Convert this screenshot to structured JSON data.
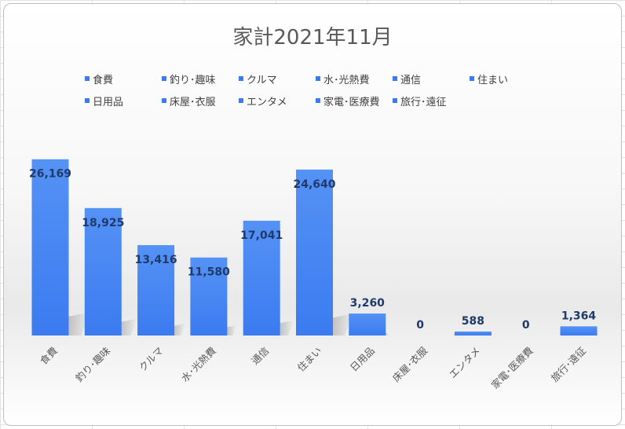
{
  "chart_data": {
    "type": "bar",
    "title": "家計2021年11月",
    "categories": [
      "食費",
      "釣り･趣味",
      "クルマ",
      "水･光熱費",
      "通信",
      "住まい",
      "日用品",
      "床屋･衣服",
      "エンタメ",
      "家電･医療費",
      "旅行･遠征"
    ],
    "values": [
      26169,
      18925,
      13416,
      11580,
      17041,
      24640,
      3260,
      0,
      588,
      0,
      1364
    ],
    "data_labels": [
      "26,169",
      "18,925",
      "13,416",
      "11,580",
      "17,041",
      "24,640",
      "3,260",
      "0",
      "588",
      "0",
      "1,364"
    ],
    "xlabel": "",
    "ylabel": "",
    "ylim": [
      0,
      28000
    ],
    "grid": false,
    "legend_position": "top",
    "colors": {
      "bar": "#3b7bf0",
      "bar_light": "#5592f5",
      "label": "#1f3a6b",
      "axis_text": "#595959"
    }
  }
}
